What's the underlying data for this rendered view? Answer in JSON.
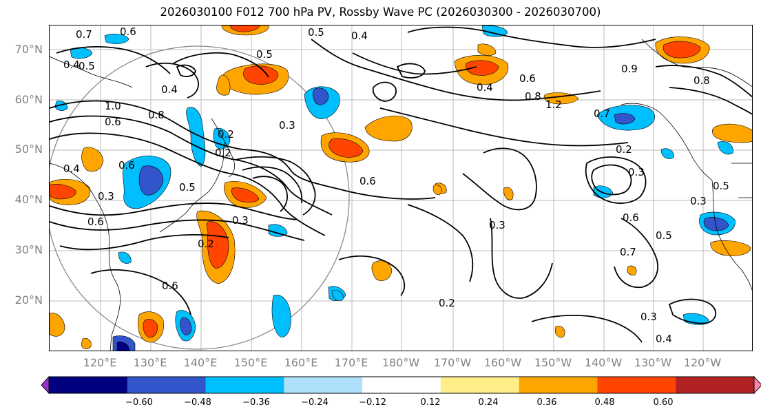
{
  "title": "2026030100 F012 700 hPa PV, Rossby Wave PC (2026030300 - 2026030700)",
  "axes": {
    "lat_labels": [
      "70°N",
      "60°N",
      "50°N",
      "40°N",
      "30°N",
      "20°N"
    ],
    "lon_labels": [
      "120°E",
      "130°E",
      "140°E",
      "150°E",
      "160°E",
      "170°E",
      "180°W",
      "170°W",
      "160°W",
      "150°W",
      "140°W",
      "130°W",
      "120°W"
    ]
  },
  "contour_labels": [
    {
      "text": "0.7"
    },
    {
      "text": "0.6"
    },
    {
      "text": "0.5"
    },
    {
      "text": "0.4"
    },
    {
      "text": "0.4"
    },
    {
      "text": "0.5"
    },
    {
      "text": "0.4"
    },
    {
      "text": "1.0"
    },
    {
      "text": "0.6"
    },
    {
      "text": "0.8"
    },
    {
      "text": "0.4"
    },
    {
      "text": "0.6"
    },
    {
      "text": "0.3"
    },
    {
      "text": "0.5"
    },
    {
      "text": "0.2"
    },
    {
      "text": "0.3"
    },
    {
      "text": "0.2"
    },
    {
      "text": "0.5"
    },
    {
      "text": "0.6"
    },
    {
      "text": "0.4"
    },
    {
      "text": "0.6"
    },
    {
      "text": "0.8"
    },
    {
      "text": "1.2"
    },
    {
      "text": "0.7"
    },
    {
      "text": "0.2"
    },
    {
      "text": "0.3"
    },
    {
      "text": "0.8"
    },
    {
      "text": "0.6"
    },
    {
      "text": "0.7"
    },
    {
      "text": "0.5"
    },
    {
      "text": "0.3"
    },
    {
      "text": "0.3"
    },
    {
      "text": "0.2"
    },
    {
      "text": "0.3"
    },
    {
      "text": "0.4"
    },
    {
      "text": "0.9"
    },
    {
      "text": "0.6"
    },
    {
      "text": "0.3"
    },
    {
      "text": "0.2"
    },
    {
      "text": "0.6"
    },
    {
      "text": "0.5"
    }
  ],
  "colorbar": {
    "colors": [
      "#9933cc",
      "#000080",
      "#3355cc",
      "#00bfff",
      "#aee0fb",
      "#ffffff",
      "#ffee88",
      "#ffa500",
      "#ff4500",
      "#b22222",
      "#ff88aa"
    ],
    "ticks": [
      "−0.60",
      "−0.48",
      "−0.36",
      "−0.24",
      "−0.12",
      "0.12",
      "0.24",
      "0.36",
      "0.48",
      "0.60"
    ]
  },
  "colors": {
    "pos1": "#ffa500",
    "pos2": "#ff4500",
    "pos3": "#b22222",
    "neg1": "#00bfff",
    "neg2": "#3355cc",
    "neg3": "#000080"
  }
}
